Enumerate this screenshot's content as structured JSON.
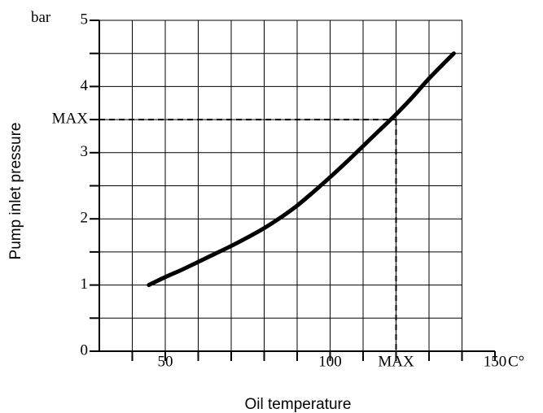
{
  "chart_data": {
    "type": "line",
    "xlabel": "Oil temperature",
    "ylabel": "Pump inlet pressure",
    "y_unit": "bar",
    "x_unit": "C°",
    "xlim": [
      30,
      150
    ],
    "ylim": [
      0,
      5
    ],
    "x_ticks": [
      {
        "value": 50,
        "label": "50"
      },
      {
        "value": 100,
        "label": "100"
      },
      {
        "value": 120,
        "label": "MAX"
      },
      {
        "value": 150,
        "label": "150"
      }
    ],
    "y_ticks": [
      {
        "value": 0,
        "label": "0"
      },
      {
        "value": 1,
        "label": "1"
      },
      {
        "value": 2,
        "label": "2"
      },
      {
        "value": 3,
        "label": "3"
      },
      {
        "value": 3.5,
        "label": "MAX"
      },
      {
        "value": 4,
        "label": "4"
      },
      {
        "value": 5,
        "label": "5"
      }
    ],
    "grid": true,
    "series": [
      {
        "x": [
          45,
          50,
          55,
          60,
          65,
          70,
          75,
          80,
          85,
          90,
          95,
          100,
          105,
          110,
          115,
          120,
          125,
          130,
          137.5
        ],
        "y": [
          1.0,
          1.12,
          1.23,
          1.35,
          1.47,
          1.59,
          1.72,
          1.86,
          2.02,
          2.2,
          2.41,
          2.63,
          2.86,
          3.1,
          3.34,
          3.58,
          3.84,
          4.12,
          4.5
        ]
      }
    ],
    "max_marker": {
      "x": 120,
      "y": 3.5
    }
  }
}
